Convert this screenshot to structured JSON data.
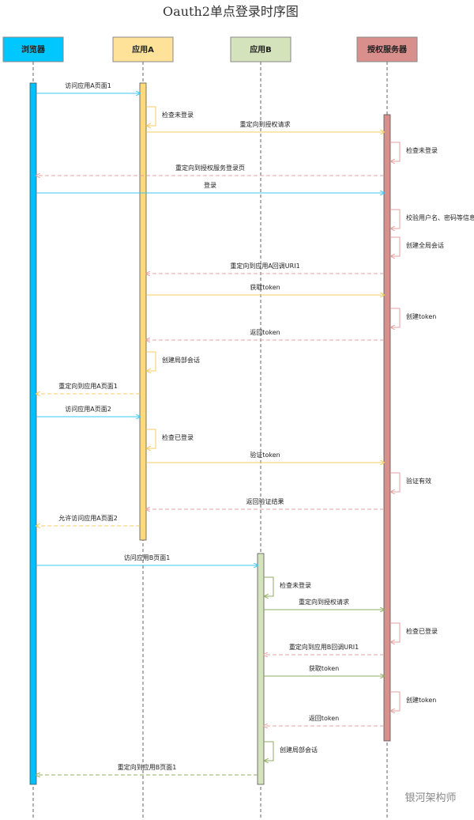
{
  "title": "Oauth2单点登录时序图",
  "participants": [
    "浏览器",
    "应用A",
    "应用B",
    "授权服务器"
  ],
  "messages": [
    "访问应用A页面1",
    "检查未登录",
    "重定向到授权请求",
    "检查未登录",
    "重定向到授权服务登录页",
    "登录",
    "校验用户名、密码等信息",
    "创建全局会话",
    "重定向到应用A回调URI1",
    "获取token",
    "创建token",
    "返回token",
    "创建局部会话",
    "重定向到应用A页面1",
    "访问应用A页面2",
    "检查已登录",
    "验证token",
    "验证有效",
    "返回验证结果",
    "允许访问应用A页面2",
    "访问应用B页面1",
    "检查未登录",
    "重定向到授权请求",
    "检查已登录",
    "重定向到应用B回调URI1",
    "获取token",
    "创建token",
    "返回token",
    "创建局部会话",
    "重定向到应用B页面1"
  ],
  "watermark": "银河架构师"
}
